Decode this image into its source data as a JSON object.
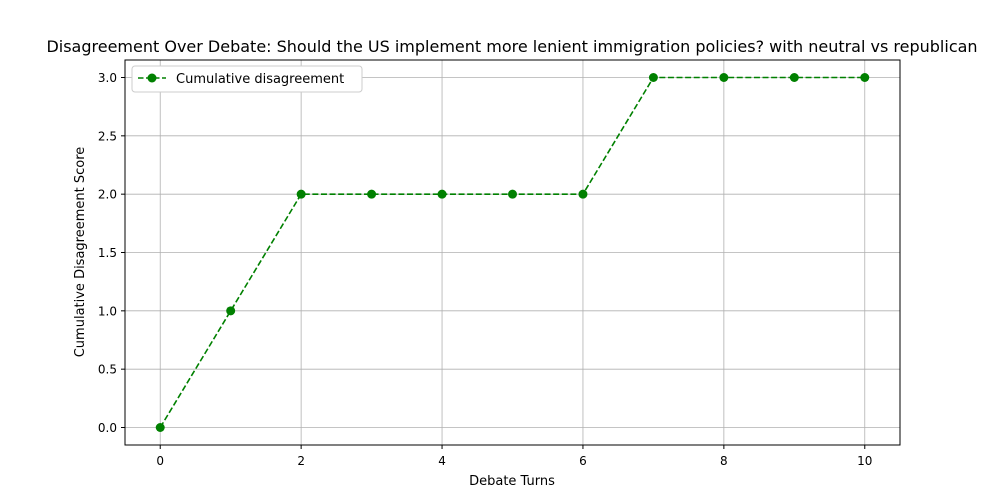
{
  "chart_data": {
    "type": "line",
    "title": "Disagreement Over Debate: Should the US implement more lenient immigration policies? with neutral vs republican",
    "xlabel": "Debate Turns",
    "ylabel": "Cumulative Disagreement Score",
    "xlim": [
      -0.5,
      10.5
    ],
    "ylim": [
      -0.15,
      3.15
    ],
    "xticks": [
      0,
      2,
      4,
      6,
      8,
      10
    ],
    "xtick_labels": [
      "0",
      "2",
      "4",
      "6",
      "8",
      "10"
    ],
    "yticks": [
      0.0,
      0.5,
      1.0,
      1.5,
      2.0,
      2.5,
      3.0
    ],
    "ytick_labels": [
      "0.0",
      "0.5",
      "1.0",
      "1.5",
      "2.0",
      "2.5",
      "3.0"
    ],
    "grid": true,
    "legend_position": "top-left",
    "series": [
      {
        "name": "Cumulative disagreement",
        "color": "#008000",
        "line_style": "dashed",
        "marker": "circle",
        "x": [
          0,
          1,
          2,
          3,
          4,
          5,
          6,
          7,
          8,
          9,
          10
        ],
        "y": [
          0,
          1,
          2,
          2,
          2,
          2,
          2,
          3,
          3,
          3,
          3
        ]
      }
    ]
  }
}
